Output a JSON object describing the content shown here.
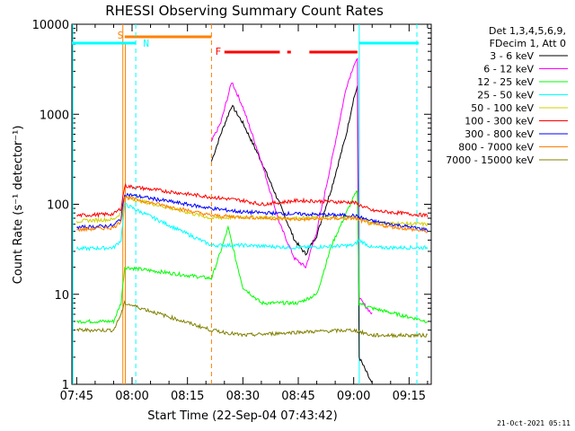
{
  "chart_data": {
    "type": "line",
    "title": "RHESSI Observing Summary Count Rates",
    "xlabel": "Start Time (22-Sep-04 07:43:42)",
    "ylabel": "Count Rate (s⁻¹ detector⁻¹)",
    "y_scale": "log",
    "ylim": [
      1,
      10000
    ],
    "xlim": [
      "07:43:42",
      "09:21:00"
    ],
    "x_ticks": [
      "07:45",
      "08:00",
      "08:15",
      "08:30",
      "08:45",
      "09:00",
      "09:15"
    ],
    "y_ticks": [
      "1",
      "10",
      "100",
      "1000",
      "10000"
    ],
    "legend_header": [
      "Det 1,3,4,5,6,9,",
      "FDecim 1, Att 0"
    ],
    "footer": "21-Oct-2021 05:11",
    "flags": [
      {
        "label": "S",
        "color": "#ff8000"
      },
      {
        "label": "N",
        "color": "#00ffff"
      },
      {
        "label": "F",
        "color": "#ff0000"
      }
    ],
    "series": [
      {
        "name": "3 - 6 keV",
        "color": "#000000",
        "points": [
          [
            "08:21:30",
            300
          ],
          [
            "08:24",
            600
          ],
          [
            "08:27",
            1250
          ],
          [
            "08:30",
            800
          ],
          [
            "08:35",
            300
          ],
          [
            "08:40",
            100
          ],
          [
            "08:44",
            40
          ],
          [
            "08:47",
            28
          ],
          [
            "08:50",
            45
          ],
          [
            "08:54",
            150
          ],
          [
            "08:58",
            600
          ],
          [
            "09:00",
            1500
          ],
          [
            "09:01",
            2000
          ],
          [
            "09:01:30",
            2
          ],
          [
            "09:05",
            1
          ]
        ]
      },
      {
        "name": "6 - 12 keV",
        "color": "#ff00ff",
        "points": [
          [
            "08:21:30",
            500
          ],
          [
            "08:24",
            800
          ],
          [
            "08:27",
            2300
          ],
          [
            "08:30",
            1200
          ],
          [
            "08:35",
            300
          ],
          [
            "08:40",
            60
          ],
          [
            "08:44",
            25
          ],
          [
            "08:47",
            20
          ],
          [
            "08:50",
            50
          ],
          [
            "08:54",
            300
          ],
          [
            "08:58",
            2000
          ],
          [
            "09:00",
            3500
          ],
          [
            "09:01",
            4000
          ],
          [
            "09:01:30",
            9
          ],
          [
            "09:05",
            6
          ]
        ]
      },
      {
        "name": "12 - 25 keV",
        "color": "#00ff00",
        "points": [
          [
            "07:45",
            5
          ],
          [
            "07:55",
            5
          ],
          [
            "07:57",
            8
          ],
          [
            "07:58",
            20
          ],
          [
            "08:21:30",
            15
          ],
          [
            "08:24",
            30
          ],
          [
            "08:26",
            55
          ],
          [
            "08:28",
            25
          ],
          [
            "08:30",
            12
          ],
          [
            "08:35",
            8
          ],
          [
            "08:45",
            8
          ],
          [
            "08:50",
            10
          ],
          [
            "08:54",
            35
          ],
          [
            "08:58",
            80
          ],
          [
            "09:00",
            120
          ],
          [
            "09:01",
            140
          ],
          [
            "09:01:30",
            8
          ],
          [
            "09:05",
            7
          ],
          [
            "09:20",
            5
          ]
        ]
      },
      {
        "name": "25 - 50 keV",
        "color": "#00ffff",
        "points": [
          [
            "07:45",
            32
          ],
          [
            "07:55",
            33
          ],
          [
            "07:57",
            40
          ],
          [
            "07:58",
            100
          ],
          [
            "08:21:30",
            35
          ],
          [
            "08:30",
            35
          ],
          [
            "08:45",
            33
          ],
          [
            "09:00",
            35
          ],
          [
            "09:01:30",
            40
          ],
          [
            "09:05",
            33
          ],
          [
            "09:20",
            33
          ]
        ]
      },
      {
        "name": "50 - 100 keV",
        "color": "#d0d000",
        "points": [
          [
            "07:45",
            65
          ],
          [
            "07:55",
            68
          ],
          [
            "07:57",
            80
          ],
          [
            "07:58",
            120
          ],
          [
            "08:21:30",
            70
          ],
          [
            "08:30",
            72
          ],
          [
            "08:45",
            70
          ],
          [
            "09:00",
            72
          ],
          [
            "09:05",
            62
          ],
          [
            "09:20",
            60
          ]
        ]
      },
      {
        "name": "100 - 300 keV",
        "color": "#ff0000",
        "points": [
          [
            "07:45",
            75
          ],
          [
            "07:55",
            78
          ],
          [
            "07:57",
            90
          ],
          [
            "07:58",
            160
          ],
          [
            "08:21:30",
            120
          ],
          [
            "08:30",
            110
          ],
          [
            "08:35",
            100
          ],
          [
            "08:45",
            110
          ],
          [
            "09:00",
            105
          ],
          [
            "09:05",
            85
          ],
          [
            "09:20",
            75
          ]
        ]
      },
      {
        "name": "300 - 800 keV",
        "color": "#0000ff",
        "points": [
          [
            "07:45",
            55
          ],
          [
            "07:55",
            58
          ],
          [
            "07:57",
            70
          ],
          [
            "07:58",
            130
          ],
          [
            "08:21:30",
            90
          ],
          [
            "08:30",
            82
          ],
          [
            "08:45",
            78
          ],
          [
            "09:00",
            75
          ],
          [
            "09:05",
            65
          ],
          [
            "09:20",
            52
          ]
        ]
      },
      {
        "name": "800 - 7000 keV",
        "color": "#ff8000",
        "points": [
          [
            "07:45",
            52
          ],
          [
            "07:55",
            55
          ],
          [
            "07:57",
            65
          ],
          [
            "07:58",
            120
          ],
          [
            "08:21:30",
            75
          ],
          [
            "08:30",
            72
          ],
          [
            "08:45",
            68
          ],
          [
            "09:00",
            70
          ],
          [
            "09:05",
            60
          ],
          [
            "09:20",
            50
          ]
        ]
      },
      {
        "name": "7000 - 15000 keV",
        "color": "#808000",
        "points": [
          [
            "07:45",
            4
          ],
          [
            "07:55",
            4
          ],
          [
            "07:57",
            6
          ],
          [
            "07:58",
            8
          ],
          [
            "08:21:30",
            4
          ],
          [
            "08:30",
            3.5
          ],
          [
            "08:45",
            3.8
          ],
          [
            "09:00",
            4
          ],
          [
            "09:05",
            3.5
          ],
          [
            "09:20",
            3.5
          ]
        ]
      }
    ]
  }
}
